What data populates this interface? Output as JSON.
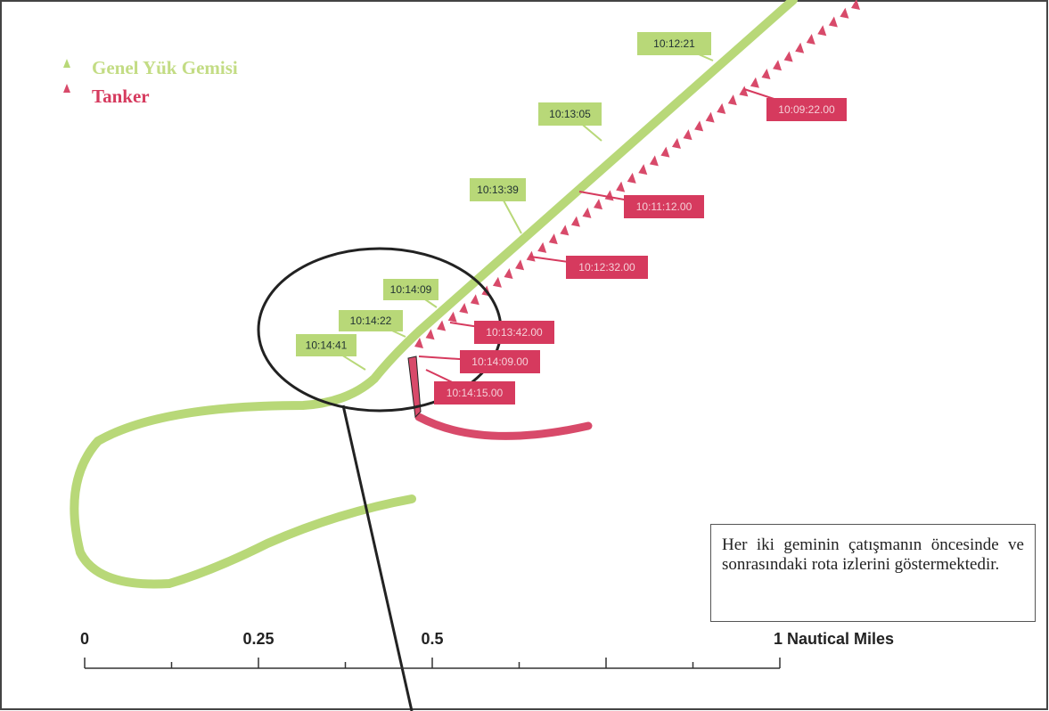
{
  "legend": [
    "Genel Yük Gemisi",
    "Tanker"
  ],
  "green_labels": [
    "10:12:21",
    "10:13:05",
    "10:13:39",
    "10:14:09",
    "10:14:22",
    "10:14:41"
  ],
  "red_labels": [
    "10:09:22.00",
    "10:11:12.00",
    "10:12:32.00",
    "10:13:42.00",
    "10:14:09.00",
    "10:14:15.00"
  ],
  "caption": "Her iki geminin çatışmanın öncesinde ve sonrasındaki rota izlerini göstermektedir.",
  "scale": [
    "0",
    "0.25",
    "0.5",
    "1 Nautical Miles"
  ]
}
